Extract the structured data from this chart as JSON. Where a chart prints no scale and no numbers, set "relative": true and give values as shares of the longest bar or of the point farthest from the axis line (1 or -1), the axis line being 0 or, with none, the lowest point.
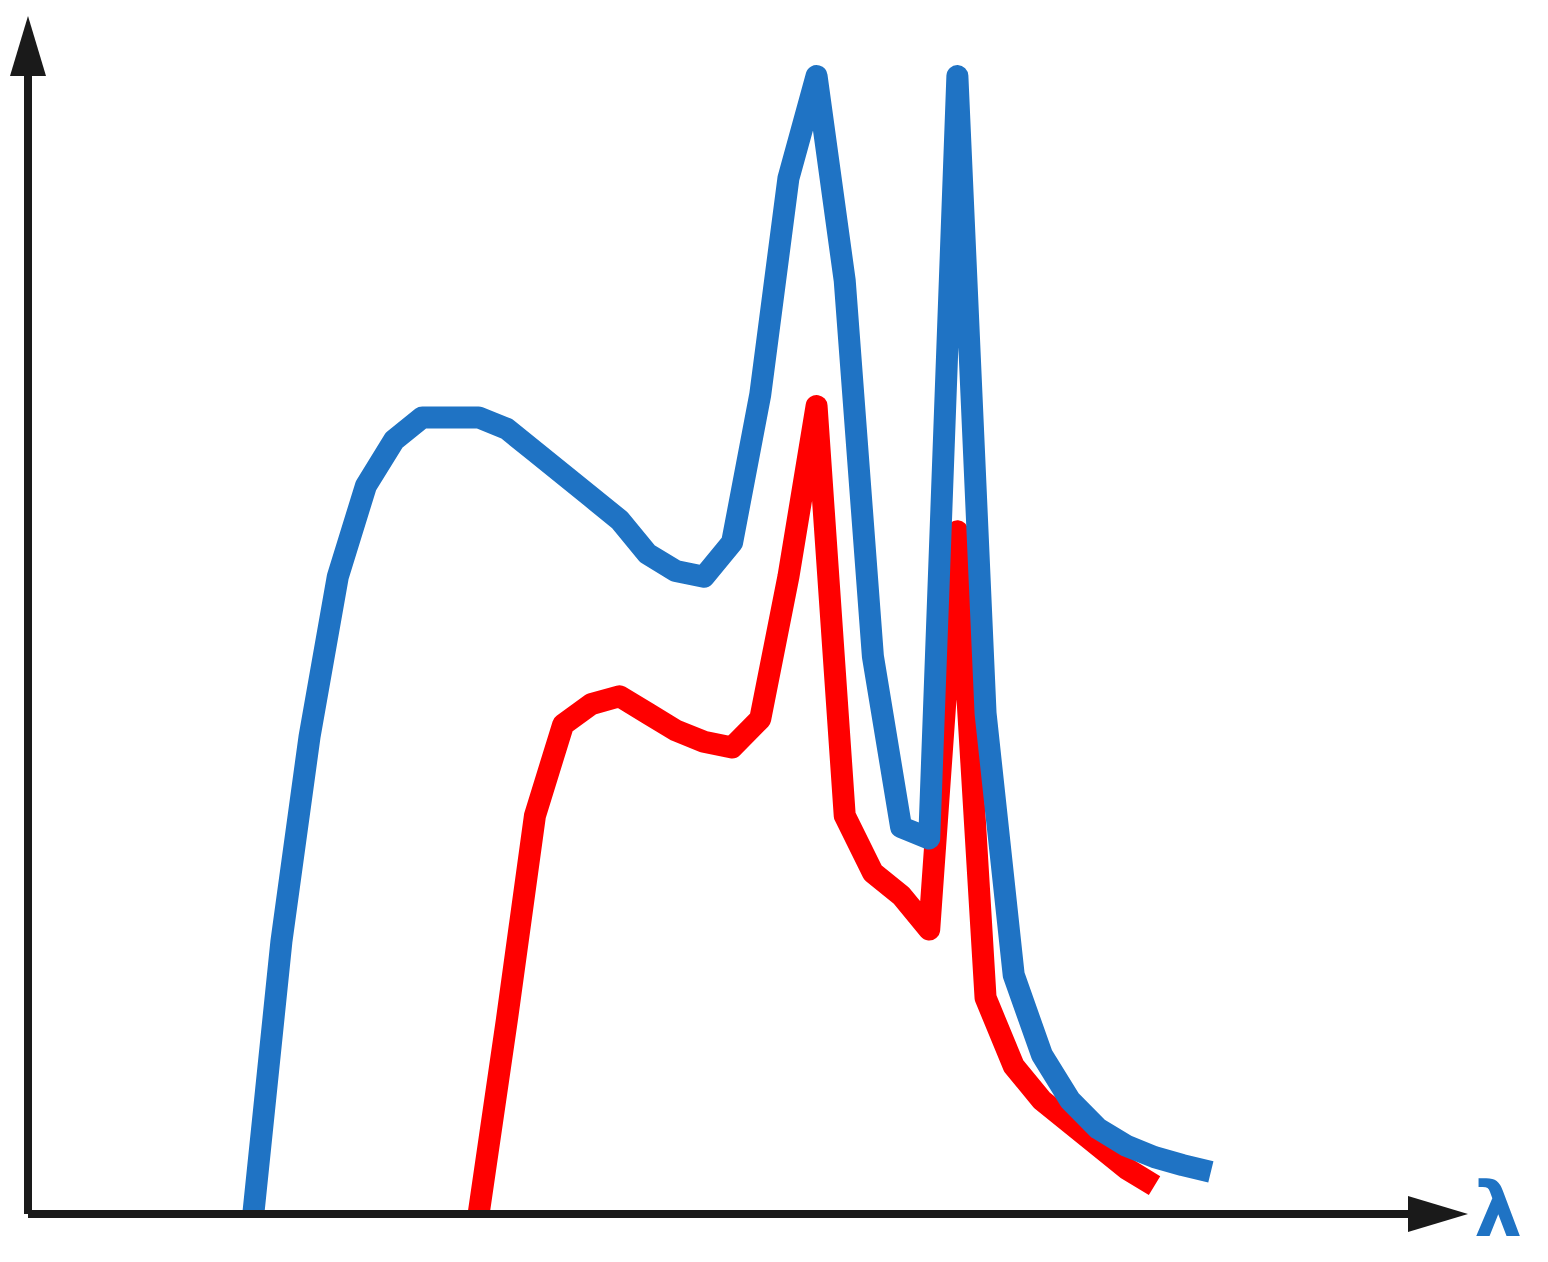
{
  "chart_data": {
    "type": "line",
    "relative": true,
    "xlabel": "λ",
    "tick_labels": false,
    "legend": false,
    "marker": "none",
    "line_style": "solid",
    "categories": [
      null,
      null,
      null,
      null,
      null,
      null,
      null,
      null,
      null,
      null,
      null,
      null,
      null,
      null,
      null,
      null,
      null,
      null,
      null,
      null,
      null,
      null,
      null,
      null,
      null,
      null,
      null,
      null,
      null,
      null,
      null,
      null,
      null,
      null,
      null,
      null,
      null,
      null,
      null,
      null,
      null,
      null,
      null,
      null,
      null,
      null,
      null,
      null,
      null,
      null
    ],
    "series": [
      {
        "color": "#1f73c4",
        "values": [
          null,
          null,
          null,
          null,
          null,
          null,
          null,
          null,
          0,
          0.24,
          0.42,
          0.56,
          0.64,
          0.68,
          0.7,
          0.7,
          0.7,
          0.69,
          0.67,
          0.65,
          0.63,
          0.61,
          0.58,
          0.565,
          0.56,
          0.59,
          0.72,
          0.91,
          1,
          0.82,
          0.49,
          0.34,
          0.33,
          1,
          0.44,
          0.21,
          0.14,
          0.1,
          0.075,
          0.06,
          0.05,
          0.043,
          0.037,
          null,
          null,
          null,
          null,
          null,
          null,
          null
        ]
      },
      {
        "color": "#ff0000",
        "values": [
          null,
          null,
          null,
          null,
          null,
          null,
          null,
          null,
          null,
          null,
          null,
          null,
          null,
          null,
          null,
          null,
          0,
          0.17,
          0.35,
          0.43,
          0.448,
          0.455,
          0.44,
          0.425,
          0.415,
          0.41,
          0.435,
          0.56,
          0.71,
          0.35,
          0.3,
          0.28,
          0.25,
          0.6,
          0.19,
          0.13,
          0.1,
          0.08,
          0.06,
          0.04,
          0.025,
          null,
          null,
          null,
          null,
          null,
          null,
          null,
          null,
          null
        ]
      }
    ]
  }
}
